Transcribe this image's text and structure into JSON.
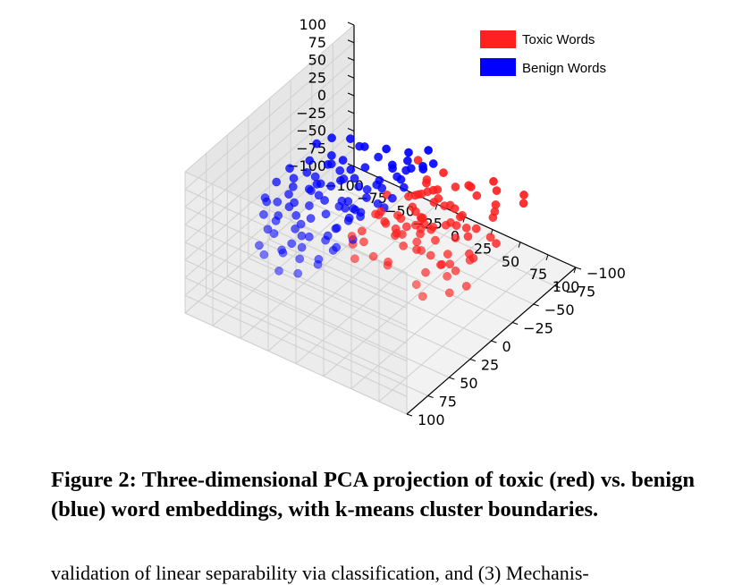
{
  "chart_data": {
    "type": "scatter",
    "projection": "3d",
    "title": "",
    "xlabel": "",
    "ylabel": "",
    "zlabel": "",
    "xlim": [
      -100,
      100
    ],
    "ylim": [
      -100,
      100
    ],
    "zlim": [
      -100,
      100
    ],
    "x_ticks": [
      "−100",
      "−75",
      "−50",
      "−25",
      "0",
      "25",
      "50",
      "75",
      "100"
    ],
    "y_ticks": [
      "−100",
      "−75",
      "−50",
      "−25",
      "0",
      "25",
      "50",
      "75",
      "100"
    ],
    "z_ticks": [
      "−100",
      "−75",
      "−50",
      "−25",
      "0",
      "25",
      "50",
      "75",
      "100"
    ],
    "grid": true,
    "legend_position": "top-right",
    "series": [
      {
        "name": "Toxic Words",
        "color": "#ff2020",
        "points": [
          [
            38,
            -84,
            -6
          ],
          [
            75,
            -71,
            3
          ],
          [
            26,
            -73,
            -11
          ],
          [
            27,
            -69,
            -4
          ],
          [
            50,
            -72,
            2
          ],
          [
            2,
            -72,
            -7
          ],
          [
            5,
            -56,
            -13
          ],
          [
            70,
            -78,
            4
          ],
          [
            8,
            -57,
            -11
          ],
          [
            25,
            -56,
            6
          ],
          [
            18,
            -45,
            -4
          ],
          [
            45,
            -55,
            9
          ],
          [
            6,
            -47,
            12
          ],
          [
            6,
            -48,
            -6
          ],
          [
            59,
            -59,
            2
          ],
          [
            -2,
            -57,
            -9
          ],
          [
            31,
            -42,
            -1
          ],
          [
            65,
            -50,
            6
          ],
          [
            28,
            -39,
            -1
          ],
          [
            14,
            -45,
            -12
          ],
          [
            2,
            -46,
            -10
          ],
          [
            40,
            -42,
            -11
          ],
          [
            59,
            -36,
            -8
          ],
          [
            3,
            -37,
            -2
          ],
          [
            6,
            -30,
            -9
          ],
          [
            68,
            -44,
            6
          ],
          [
            35,
            -42,
            -3
          ],
          [
            -2,
            -36,
            -6
          ],
          [
            48,
            -27,
            -2
          ],
          [
            12,
            -29,
            14
          ],
          [
            48,
            -34,
            5
          ],
          [
            77,
            -36,
            -16
          ],
          [
            12,
            -26,
            -7
          ],
          [
            21,
            -21,
            -6
          ],
          [
            60,
            -25,
            -7
          ],
          [
            23,
            -20,
            -2
          ],
          [
            32,
            -18,
            -10
          ],
          [
            81,
            -24,
            8
          ],
          [
            43,
            -21,
            1
          ],
          [
            45,
            -24,
            3
          ],
          [
            19,
            -23,
            -7
          ],
          [
            57,
            -27,
            1
          ],
          [
            7,
            -15,
            -9
          ],
          [
            29,
            -14,
            0
          ],
          [
            54,
            -18,
            -6
          ],
          [
            5,
            -14,
            -5
          ],
          [
            39,
            -11,
            6
          ],
          [
            -6,
            -6,
            -4
          ],
          [
            16,
            -10,
            -9
          ],
          [
            0,
            -5,
            -8
          ],
          [
            26,
            -13,
            -15
          ],
          [
            71,
            -12,
            -10
          ],
          [
            60,
            -1,
            -7
          ],
          [
            77,
            -9,
            -9
          ],
          [
            -9,
            -6,
            -5
          ],
          [
            10,
            -5,
            -11
          ],
          [
            35,
            -2,
            10
          ],
          [
            28,
            -5,
            7
          ],
          [
            1,
            -5,
            -10
          ],
          [
            83,
            3,
            5
          ],
          [
            17,
            5,
            -5
          ],
          [
            48,
            -2,
            3
          ],
          [
            63,
            10,
            -8
          ],
          [
            77,
            12,
            -5
          ],
          [
            38,
            7,
            -8
          ],
          [
            42,
            12,
            11
          ],
          [
            17,
            3,
            -4
          ],
          [
            22,
            3,
            -2
          ],
          [
            89,
            15,
            -15
          ],
          [
            68,
            7,
            -7
          ],
          [
            29,
            11,
            -5
          ],
          [
            49,
            16,
            8
          ],
          [
            56,
            14,
            4
          ],
          [
            65,
            14,
            -3
          ],
          [
            1,
            21,
            -9
          ],
          [
            80,
            26,
            4
          ],
          [
            29,
            29,
            -9
          ],
          [
            86,
            31,
            -10
          ],
          [
            34,
            36,
            -3
          ],
          [
            56,
            20,
            -14
          ],
          [
            66,
            44,
            1
          ],
          [
            74,
            47,
            -7
          ],
          [
            -11,
            -59,
            15
          ],
          [
            -11,
            -15,
            -12
          ],
          [
            -6,
            14,
            -6
          ],
          [
            -9,
            22,
            -7
          ],
          [
            -10,
            -21,
            6
          ],
          [
            12,
            46,
            1
          ],
          [
            18,
            32,
            -6
          ],
          [
            -2,
            30,
            -5
          ]
        ]
      },
      {
        "name": "Benign Words",
        "color": "#0000ff",
        "points": [
          [
            -17,
            -79,
            4
          ],
          [
            -48,
            -70,
            -7
          ],
          [
            -1,
            -64,
            12
          ],
          [
            -34,
            -59,
            -13
          ],
          [
            -11,
            -65,
            -4
          ],
          [
            -31,
            -74,
            -4
          ],
          [
            -73,
            -38,
            -1
          ],
          [
            -86,
            -29,
            -8
          ],
          [
            -12,
            -52,
            10
          ],
          [
            -18,
            -48,
            -6
          ],
          [
            -15,
            -50,
            7
          ],
          [
            -57,
            -50,
            11
          ],
          [
            -17,
            -42,
            5
          ],
          [
            -71,
            -31,
            -5
          ],
          [
            -77,
            -14,
            -3
          ],
          [
            -23,
            -29,
            9
          ],
          [
            -65,
            -41,
            -5
          ],
          [
            -7,
            -37,
            2
          ],
          [
            -45,
            -41,
            -1
          ],
          [
            -20,
            -28,
            1
          ],
          [
            -55,
            -37,
            -7
          ],
          [
            -27,
            -19,
            -8
          ],
          [
            -44,
            -27,
            -1
          ],
          [
            -25,
            -17,
            7
          ],
          [
            -64,
            -26,
            6
          ],
          [
            -6,
            -22,
            3
          ],
          [
            -91,
            -12,
            -5
          ],
          [
            -24,
            -27,
            4
          ],
          [
            -68,
            -14,
            -13
          ],
          [
            -51,
            -19,
            13
          ],
          [
            -31,
            -15,
            9
          ],
          [
            -57,
            -4,
            6
          ],
          [
            -46,
            -17,
            7
          ],
          [
            -26,
            -2,
            -5
          ],
          [
            -53,
            -11,
            -2
          ],
          [
            -10,
            -10,
            5
          ],
          [
            -33,
            -5,
            -3
          ],
          [
            -51,
            6,
            4
          ],
          [
            -5,
            -11,
            2
          ],
          [
            -20,
            -3,
            -7
          ],
          [
            -48,
            3,
            -4
          ],
          [
            -34,
            1,
            3
          ],
          [
            -61,
            -3,
            14
          ],
          [
            -22,
            9,
            -8
          ],
          [
            -62,
            3,
            2
          ],
          [
            -22,
            8,
            -5
          ],
          [
            -72,
            14,
            -1
          ],
          [
            -79,
            -1,
            1
          ],
          [
            -31,
            1,
            -5
          ],
          [
            -55,
            10,
            12
          ],
          [
            -18,
            6,
            7
          ],
          [
            -28,
            12,
            11
          ],
          [
            -37,
            16,
            -2
          ],
          [
            -67,
            20,
            -9
          ],
          [
            -64,
            18,
            -3
          ],
          [
            -12,
            8,
            4
          ],
          [
            -5,
            26,
            -5
          ],
          [
            -52,
            16,
            -1
          ],
          [
            -43,
            26,
            -2
          ],
          [
            -21,
            24,
            -2
          ],
          [
            -70,
            30,
            6
          ],
          [
            -23,
            32,
            -6
          ],
          [
            -79,
            31,
            1
          ],
          [
            -16,
            32,
            9
          ],
          [
            -57,
            25,
            -9
          ],
          [
            -42,
            39,
            4
          ],
          [
            -10,
            39,
            -6
          ],
          [
            -67,
            33,
            -8
          ],
          [
            -30,
            45,
            1
          ],
          [
            -48,
            38,
            -8
          ],
          [
            -16,
            44,
            5
          ],
          [
            -71,
            45,
            3
          ],
          [
            -36,
            46,
            -1
          ],
          [
            -6,
            48,
            2
          ],
          [
            -62,
            52,
            -4
          ],
          [
            -29,
            55,
            -3
          ],
          [
            -51,
            59,
            5
          ],
          [
            -10,
            60,
            -1
          ],
          [
            -41,
            63,
            -7
          ],
          [
            -21,
            68,
            0
          ],
          [
            -33,
            72,
            4
          ],
          [
            -56,
            70,
            -4
          ],
          [
            -15,
            78,
            -6
          ],
          [
            -44,
            80,
            2
          ],
          [
            -3,
            70,
            7
          ],
          [
            -26,
            86,
            -2
          ],
          [
            -35,
            -60,
            -10
          ],
          [
            -82,
            -50,
            5
          ],
          [
            -60,
            -60,
            -2
          ],
          [
            -90,
            5,
            -6
          ],
          [
            -88,
            -40,
            3
          ],
          [
            -75,
            5,
            -2
          ],
          [
            -40,
            -50,
            8
          ],
          [
            -60,
            45,
            2
          ],
          [
            -85,
            25,
            -4
          ],
          [
            -25,
            -65,
            -2
          ],
          [
            -55,
            -25,
            -10
          ],
          [
            -15,
            -70,
            -8
          ],
          [
            -42,
            50,
            -12
          ],
          [
            -69,
            -55,
            8
          ]
        ]
      }
    ]
  },
  "caption": "Figure 2: Three-dimensional PCA projection of toxic (red) vs. benign (blue) word embeddings, with k-means cluster boundaries.",
  "body_fragment": "validation of linear separability via classification, and (3) Mechanis-"
}
